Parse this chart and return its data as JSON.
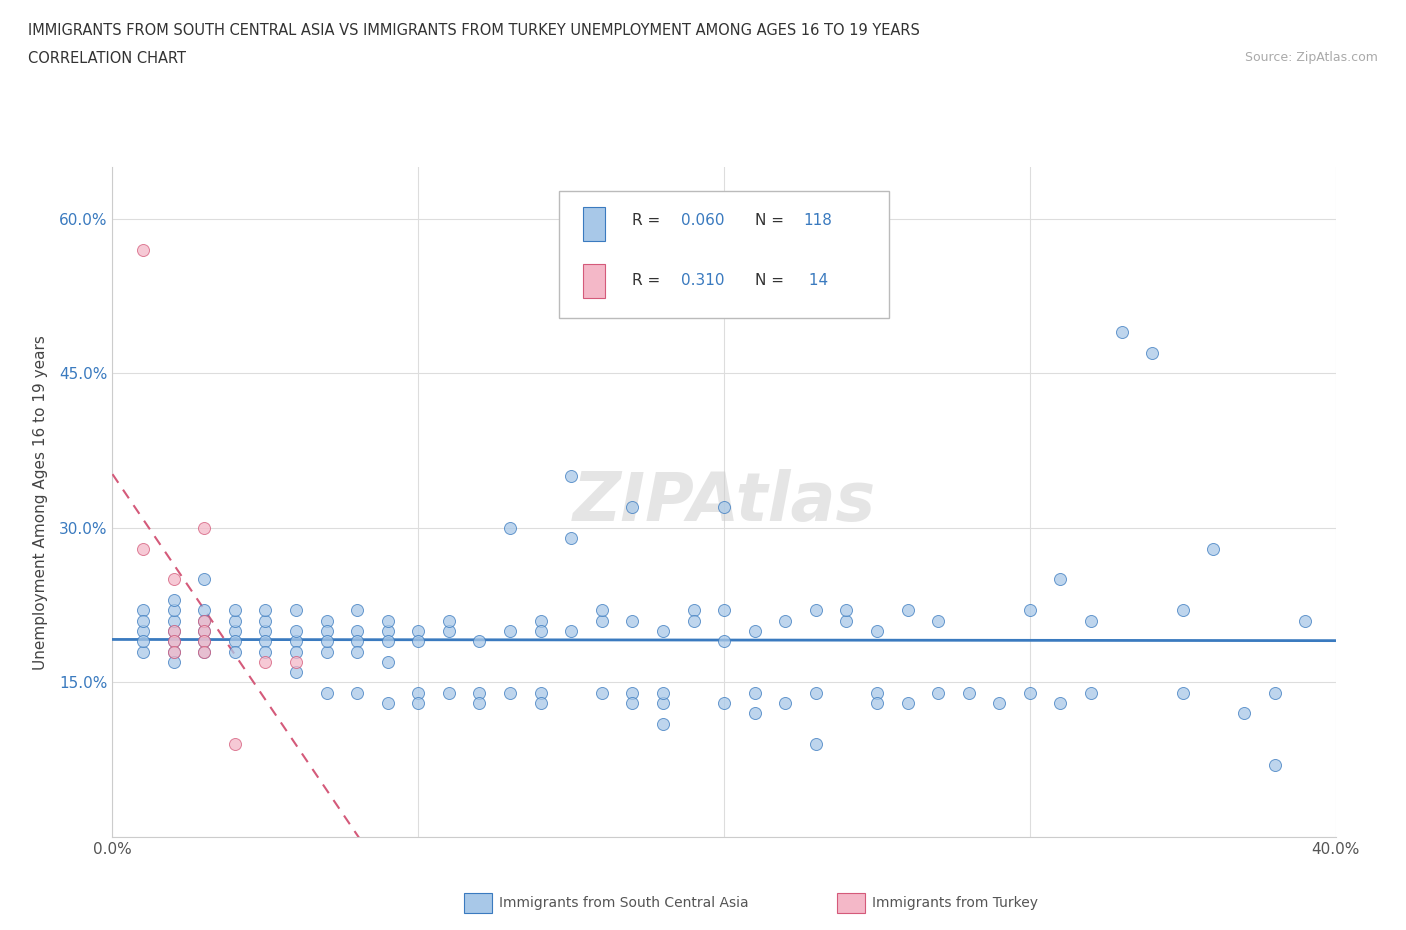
{
  "title_line1": "IMMIGRANTS FROM SOUTH CENTRAL ASIA VS IMMIGRANTS FROM TURKEY UNEMPLOYMENT AMONG AGES 16 TO 19 YEARS",
  "title_line2": "CORRELATION CHART",
  "source": "Source: ZipAtlas.com",
  "ylabel": "Unemployment Among Ages 16 to 19 years",
  "xlim": [
    0.0,
    0.4
  ],
  "ylim": [
    0.0,
    0.65
  ],
  "color_blue": "#a8c8e8",
  "color_pink": "#f4b8c8",
  "line_blue": "#3a7abf",
  "line_pink": "#d45a7a",
  "trendline_blue_color": "#3a7abf",
  "trendline_pink_color": "#d45a7a",
  "watermark": "ZIPAtlas",
  "scatter_blue": [
    [
      0.01,
      0.2
    ],
    [
      0.01,
      0.18
    ],
    [
      0.01,
      0.19
    ],
    [
      0.01,
      0.22
    ],
    [
      0.01,
      0.21
    ],
    [
      0.02,
      0.2
    ],
    [
      0.02,
      0.19
    ],
    [
      0.02,
      0.18
    ],
    [
      0.02,
      0.21
    ],
    [
      0.02,
      0.22
    ],
    [
      0.02,
      0.23
    ],
    [
      0.02,
      0.17
    ],
    [
      0.03,
      0.2
    ],
    [
      0.03,
      0.19
    ],
    [
      0.03,
      0.18
    ],
    [
      0.03,
      0.22
    ],
    [
      0.03,
      0.25
    ],
    [
      0.03,
      0.21
    ],
    [
      0.04,
      0.2
    ],
    [
      0.04,
      0.19
    ],
    [
      0.04,
      0.21
    ],
    [
      0.04,
      0.18
    ],
    [
      0.04,
      0.22
    ],
    [
      0.05,
      0.2
    ],
    [
      0.05,
      0.19
    ],
    [
      0.05,
      0.21
    ],
    [
      0.05,
      0.18
    ],
    [
      0.05,
      0.22
    ],
    [
      0.06,
      0.19
    ],
    [
      0.06,
      0.2
    ],
    [
      0.06,
      0.22
    ],
    [
      0.06,
      0.16
    ],
    [
      0.06,
      0.18
    ],
    [
      0.07,
      0.21
    ],
    [
      0.07,
      0.2
    ],
    [
      0.07,
      0.18
    ],
    [
      0.07,
      0.19
    ],
    [
      0.07,
      0.14
    ],
    [
      0.08,
      0.2
    ],
    [
      0.08,
      0.19
    ],
    [
      0.08,
      0.22
    ],
    [
      0.08,
      0.18
    ],
    [
      0.08,
      0.14
    ],
    [
      0.09,
      0.2
    ],
    [
      0.09,
      0.21
    ],
    [
      0.09,
      0.19
    ],
    [
      0.09,
      0.13
    ],
    [
      0.09,
      0.17
    ],
    [
      0.1,
      0.2
    ],
    [
      0.1,
      0.19
    ],
    [
      0.1,
      0.14
    ],
    [
      0.1,
      0.13
    ],
    [
      0.11,
      0.2
    ],
    [
      0.11,
      0.21
    ],
    [
      0.11,
      0.14
    ],
    [
      0.12,
      0.19
    ],
    [
      0.12,
      0.14
    ],
    [
      0.12,
      0.13
    ],
    [
      0.13,
      0.2
    ],
    [
      0.13,
      0.3
    ],
    [
      0.13,
      0.14
    ],
    [
      0.14,
      0.21
    ],
    [
      0.14,
      0.2
    ],
    [
      0.14,
      0.14
    ],
    [
      0.14,
      0.13
    ],
    [
      0.15,
      0.35
    ],
    [
      0.15,
      0.29
    ],
    [
      0.15,
      0.2
    ],
    [
      0.16,
      0.21
    ],
    [
      0.16,
      0.22
    ],
    [
      0.16,
      0.14
    ],
    [
      0.17,
      0.32
    ],
    [
      0.17,
      0.21
    ],
    [
      0.17,
      0.14
    ],
    [
      0.17,
      0.13
    ],
    [
      0.18,
      0.2
    ],
    [
      0.18,
      0.13
    ],
    [
      0.18,
      0.14
    ],
    [
      0.18,
      0.11
    ],
    [
      0.19,
      0.22
    ],
    [
      0.19,
      0.21
    ],
    [
      0.2,
      0.32
    ],
    [
      0.2,
      0.22
    ],
    [
      0.2,
      0.19
    ],
    [
      0.2,
      0.13
    ],
    [
      0.21,
      0.2
    ],
    [
      0.21,
      0.14
    ],
    [
      0.21,
      0.12
    ],
    [
      0.22,
      0.21
    ],
    [
      0.22,
      0.13
    ],
    [
      0.23,
      0.22
    ],
    [
      0.23,
      0.14
    ],
    [
      0.23,
      0.09
    ],
    [
      0.24,
      0.21
    ],
    [
      0.24,
      0.22
    ],
    [
      0.25,
      0.2
    ],
    [
      0.25,
      0.14
    ],
    [
      0.25,
      0.13
    ],
    [
      0.26,
      0.22
    ],
    [
      0.26,
      0.13
    ],
    [
      0.27,
      0.14
    ],
    [
      0.27,
      0.21
    ],
    [
      0.28,
      0.14
    ],
    [
      0.29,
      0.13
    ],
    [
      0.3,
      0.22
    ],
    [
      0.3,
      0.14
    ],
    [
      0.31,
      0.25
    ],
    [
      0.31,
      0.13
    ],
    [
      0.32,
      0.14
    ],
    [
      0.32,
      0.21
    ],
    [
      0.33,
      0.49
    ],
    [
      0.34,
      0.47
    ],
    [
      0.35,
      0.22
    ],
    [
      0.35,
      0.14
    ],
    [
      0.36,
      0.28
    ],
    [
      0.37,
      0.12
    ],
    [
      0.38,
      0.14
    ],
    [
      0.38,
      0.07
    ],
    [
      0.39,
      0.21
    ]
  ],
  "scatter_pink": [
    [
      0.01,
      0.57
    ],
    [
      0.01,
      0.28
    ],
    [
      0.02,
      0.2
    ],
    [
      0.02,
      0.25
    ],
    [
      0.02,
      0.19
    ],
    [
      0.02,
      0.18
    ],
    [
      0.03,
      0.3
    ],
    [
      0.03,
      0.21
    ],
    [
      0.03,
      0.2
    ],
    [
      0.03,
      0.19
    ],
    [
      0.03,
      0.18
    ],
    [
      0.04,
      0.09
    ],
    [
      0.05,
      0.17
    ],
    [
      0.06,
      0.17
    ]
  ]
}
